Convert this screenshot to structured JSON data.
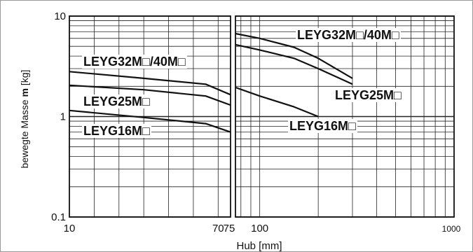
{
  "chart_data": {
    "type": "line",
    "xlabel": "Hub [mm]",
    "ylabel_prefix": "bewegte Masse ",
    "ylabel_symbol": "m",
    "ylabel_suffix": " [kg]",
    "y_scale": "log",
    "ylim": [
      0.1,
      10
    ],
    "y_ticks": [
      "0.1",
      "1",
      "10"
    ],
    "grid": true,
    "panels": [
      {
        "x_scale": "linear",
        "xlim": [
          10,
          75
        ],
        "x_ticks": [
          "10",
          "70"
        ],
        "series": [
          {
            "name": "LEYG32M□/40M□",
            "x": [
              10,
              40,
              65,
              75
            ],
            "y": [
              2.8,
              2.4,
              2.1,
              1.65
            ]
          },
          {
            "name": "LEYG25M□",
            "x": [
              10,
              40,
              65,
              75
            ],
            "y": [
              2.05,
              1.85,
              1.6,
              1.3
            ]
          },
          {
            "name": "LEYG16M□",
            "x": [
              10,
              40,
              65,
              75
            ],
            "y": [
              1.15,
              0.98,
              0.85,
              0.7
            ]
          }
        ]
      },
      {
        "x_scale": "log",
        "xlim": [
          75,
          1000
        ],
        "x_ticks": [
          "75",
          "100",
          "1000"
        ],
        "series": [
          {
            "name": "LEYG32M□/40M□",
            "x": [
              75,
              100,
              150,
              200,
              300
            ],
            "y": [
              6.7,
              6.0,
              4.9,
              3.8,
              2.4
            ]
          },
          {
            "name": "LEYG25M□",
            "x": [
              75,
              100,
              150,
              200,
              300
            ],
            "y": [
              5.2,
              4.6,
              3.8,
              3.0,
              2.1
            ]
          },
          {
            "name": "LEYG16M□",
            "x": [
              75,
              100,
              150,
              200
            ],
            "y": [
              1.95,
              1.6,
              1.25,
              1.0
            ]
          }
        ]
      }
    ],
    "labels": [
      {
        "text": "LEYG32M□/40M□",
        "panel": 0
      },
      {
        "text": "LEYG25M□",
        "panel": 0
      },
      {
        "text": "LEYG16M□",
        "panel": 0
      },
      {
        "text": "LEYG32M□/40M□",
        "panel": 1
      },
      {
        "text": "LEYG25M□",
        "panel": 1
      },
      {
        "text": "LEYG16M□",
        "panel": 1
      }
    ]
  }
}
